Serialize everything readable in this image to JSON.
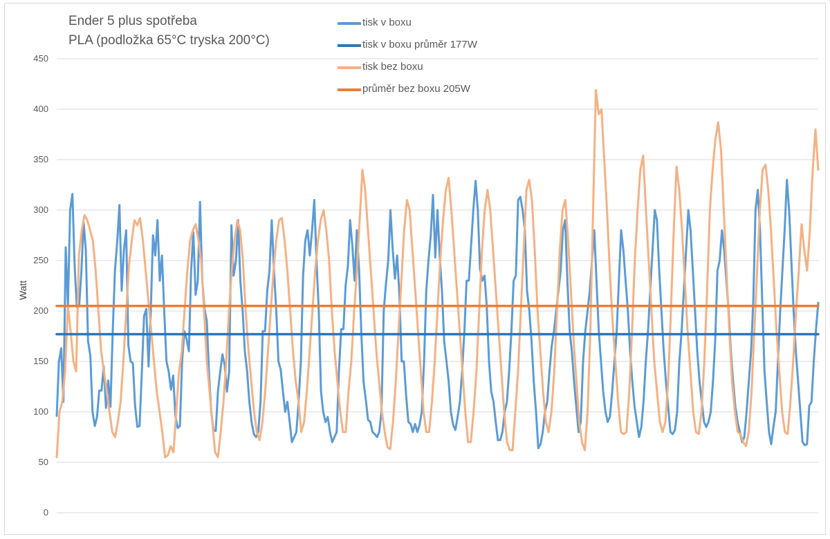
{
  "chart_data": {
    "type": "line",
    "title": "Ender 5 plus spotřeba",
    "subtitle": "PLA (podložka 65°C tryska 200°C)",
    "xlabel": "",
    "ylabel": "Watt",
    "ylim": [
      0,
      450
    ],
    "yticks": [
      0,
      50,
      100,
      150,
      200,
      250,
      300,
      350,
      400,
      450
    ],
    "grid": "horizontal",
    "legend_position": "top",
    "series": [
      {
        "name": "tisk v boxu",
        "color": "#5b9bd5",
        "kind": "line",
        "values": [
          96,
          150,
          163,
          110,
          263,
          205,
          300,
          316,
          245,
          204,
          205,
          238,
          288,
          260,
          170,
          156,
          100,
          86,
          95,
          121,
          121,
          145,
          104,
          131,
          105,
          180,
          240,
          268,
          305,
          220,
          260,
          280,
          166,
          150,
          148,
          106,
          85,
          86,
          140,
          195,
          202,
          145,
          200,
          275,
          255,
          290,
          230,
          255,
          200,
          150,
          140,
          122,
          136,
          96,
          84,
          86,
          150,
          180,
          172,
          160,
          240,
          278,
          216,
          230,
          308,
          230,
          202,
          190,
          138,
          100,
          82,
          81,
          121,
          140,
          157,
          146,
          120,
          140,
          285,
          235,
          250,
          290,
          230,
          200,
          160,
          140,
          110,
          90,
          78,
          75,
          80,
          110,
          180,
          180,
          220,
          240,
          290,
          240,
          202,
          150,
          142,
          120,
          100,
          110,
          90,
          70,
          75,
          80,
          110,
          150,
          235,
          270,
          280,
          255,
          280,
          310,
          250,
          200,
          120,
          100,
          90,
          95,
          80,
          70,
          75,
          80,
          140,
          182,
          182,
          225,
          245,
          290,
          265,
          230,
          280,
          240,
          178,
          130,
          112,
          92,
          90,
          80,
          78,
          75,
          80,
          100,
          200,
          227,
          250,
          300,
          262,
          232,
          255,
          215,
          150,
          150,
          116,
          90,
          88,
          80,
          88,
          80,
          87,
          100,
          150,
          220,
          250,
          275,
          315,
          253,
          300,
          255,
          220,
          170,
          150,
          130,
          100,
          87,
          82,
          95,
          110,
          140,
          180,
          230,
          230,
          265,
          300,
          329,
          300,
          242,
          230,
          235,
          205,
          150,
          120,
          110,
          90,
          72,
          72,
          80,
          100,
          110,
          140,
          180,
          230,
          235,
          310,
          313,
          300,
          280,
          220,
          200,
          170,
          130,
          100,
          64,
          68,
          80,
          100,
          110,
          140,
          165,
          180,
          200,
          220,
          240,
          280,
          290,
          230,
          180,
          160,
          130,
          104,
          80,
          90,
          150,
          180,
          200,
          220,
          250,
          280,
          230,
          180,
          150,
          120,
          100,
          90,
          95,
          120,
          150,
          180,
          230,
          280,
          260,
          230,
          200,
          160,
          130,
          105,
          90,
          75,
          85,
          110,
          150,
          180,
          220,
          260,
          300,
          290,
          240,
          200,
          160,
          130,
          105,
          80,
          78,
          82,
          100,
          150,
          180,
          220,
          260,
          300,
          280,
          240,
          200,
          160,
          130,
          110,
          90,
          85,
          90,
          100,
          130,
          170,
          240,
          250,
          280,
          260,
          230,
          200,
          160,
          130,
          105,
          90,
          80,
          70,
          75,
          100,
          130,
          160,
          210,
          300,
          320,
          280,
          210,
          140,
          110,
          80,
          68,
          85,
          100,
          150,
          200,
          240,
          280,
          330,
          300,
          250,
          200,
          160,
          130,
          100,
          70,
          67,
          68,
          106,
          110,
          150,
          182,
          208
        ]
      },
      {
        "name": "tisk v boxu průměr 177W",
        "color": "#2e75b6",
        "kind": "constant",
        "value": 177
      },
      {
        "name": "tisk bez boxu",
        "color": "#f4b183",
        "kind": "line",
        "values": [
          55,
          100,
          110,
          140,
          205,
          180,
          150,
          140,
          255,
          280,
          295,
          290,
          280,
          270,
          240,
          200,
          160,
          140,
          120,
          100,
          80,
          75,
          90,
          110,
          150,
          200,
          245,
          270,
          290,
          285,
          292,
          270,
          240,
          210,
          180,
          150,
          120,
          100,
          80,
          55,
          57,
          66,
          60,
          100,
          140,
          160,
          200,
          240,
          270,
          280,
          286,
          270,
          250,
          200,
          150,
          120,
          90,
          60,
          55,
          80,
          110,
          150,
          200,
          240,
          270,
          290,
          280,
          250,
          200,
          160,
          130,
          100,
          80,
          72,
          90,
          120,
          160,
          200,
          240,
          270,
          290,
          292,
          270,
          240,
          200,
          160,
          130,
          110,
          80,
          90,
          120,
          160,
          200,
          240,
          270,
          290,
          300,
          280,
          250,
          200,
          160,
          130,
          100,
          80,
          80,
          120,
          150,
          200,
          240,
          290,
          340,
          320,
          280,
          240,
          200,
          160,
          130,
          100,
          80,
          65,
          63,
          90,
          130,
          180,
          230,
          280,
          310,
          300,
          260,
          220,
          180,
          140,
          100,
          80,
          80,
          110,
          150,
          200,
          250,
          290,
          320,
          332,
          300,
          260,
          220,
          180,
          140,
          100,
          70,
          70,
          100,
          140,
          200,
          260,
          300,
          320,
          300,
          260,
          220,
          180,
          140,
          100,
          70,
          62,
          62,
          100,
          140,
          200,
          260,
          320,
          330,
          310,
          260,
          200,
          160,
          120,
          90,
          80,
          100,
          140,
          200,
          260,
          300,
          310,
          270,
          220,
          170,
          130,
          90,
          70,
          62,
          100,
          180,
          300,
          419,
          395,
          400,
          350,
          300,
          240,
          190,
          150,
          110,
          80,
          78,
          80,
          120,
          180,
          250,
          300,
          340,
          354,
          300,
          250,
          200,
          150,
          120,
          90,
          80,
          90,
          130,
          200,
          280,
          343,
          320,
          280,
          230,
          180,
          140,
          100,
          80,
          78,
          100,
          150,
          220,
          300,
          340,
          370,
          387,
          360,
          300,
          240,
          180,
          130,
          100,
          80,
          78,
          70,
          66,
          80,
          120,
          180,
          240,
          300,
          340,
          345,
          320,
          280,
          230,
          180,
          140,
          100,
          80,
          78,
          110,
          150,
          200,
          240,
          286,
          260,
          240,
          280,
          340,
          380,
          340
        ]
      },
      {
        "name": "průměr bez boxu 205W",
        "color": "#ed7d31",
        "kind": "constant",
        "value": 205
      }
    ]
  }
}
